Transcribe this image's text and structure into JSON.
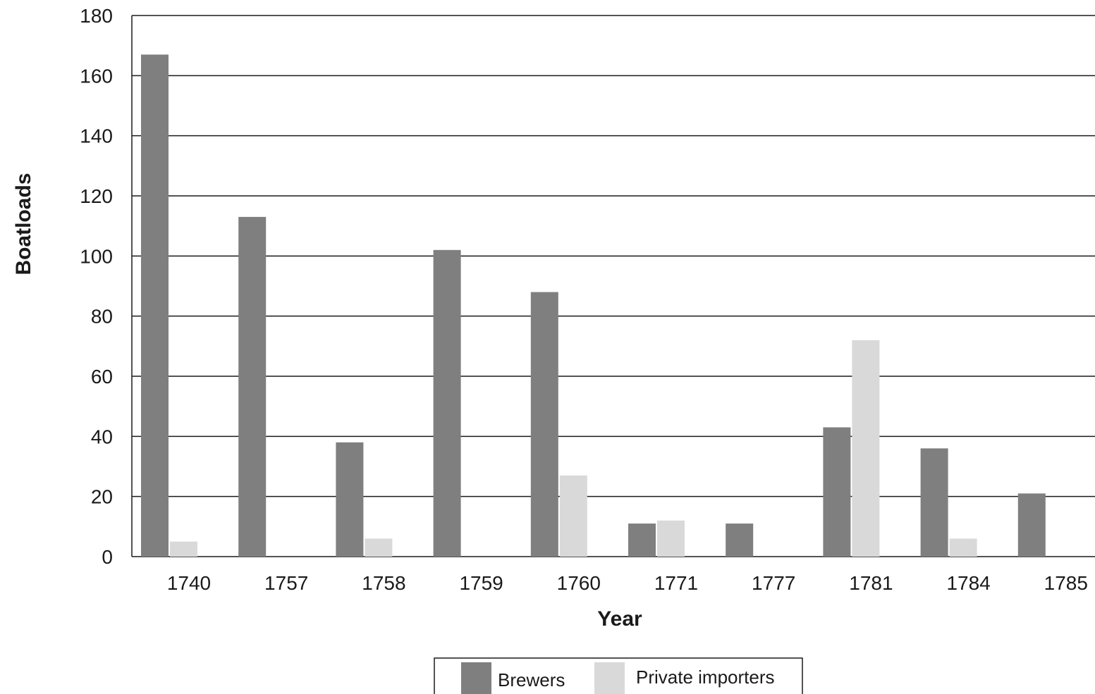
{
  "chart_data": {
    "type": "bar",
    "xlabel": "Year",
    "ylabel": "Boatloads",
    "ylim": [
      0,
      180
    ],
    "yticks": [
      0,
      20,
      40,
      60,
      80,
      100,
      120,
      140,
      160,
      180
    ],
    "grid": true,
    "legend_position": "bottom-center",
    "categories": [
      "1740",
      "1757",
      "1758",
      "1759",
      "1760",
      "1771",
      "1777",
      "1781",
      "1784",
      "1785"
    ],
    "series": [
      {
        "name": "Brewers",
        "color": "#7f7f7f",
        "values": [
          167,
          113,
          38,
          102,
          88,
          11,
          11,
          43,
          36,
          21
        ]
      },
      {
        "name": "Private importers",
        "color": "#d9d9d9",
        "values": [
          5,
          0,
          6,
          0,
          27,
          12,
          0,
          72,
          6,
          0
        ]
      }
    ]
  }
}
